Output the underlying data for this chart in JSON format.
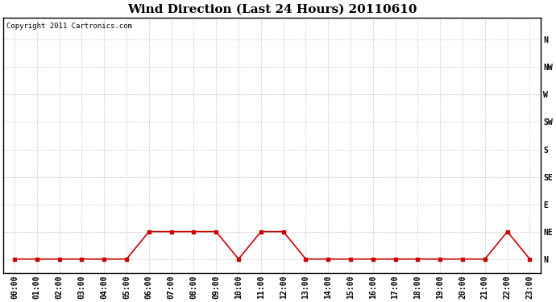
{
  "title": "Wind Direction (Last 24 Hours) 20110610",
  "copyright_text": "Copyright 2011 Cartronics.com",
  "line_color": "#cc0000",
  "marker_color": "#cc0000",
  "background_color": "#ffffff",
  "grid_color": "#c8c8c8",
  "hours": [
    0,
    1,
    2,
    3,
    4,
    5,
    6,
    7,
    8,
    9,
    10,
    11,
    12,
    13,
    14,
    15,
    16,
    17,
    18,
    19,
    20,
    21,
    22,
    23
  ],
  "x_labels": [
    "00:00",
    "01:00",
    "02:00",
    "03:00",
    "04:00",
    "05:00",
    "06:00",
    "07:00",
    "08:00",
    "09:00",
    "10:00",
    "11:00",
    "12:00",
    "13:00",
    "14:00",
    "15:00",
    "16:00",
    "17:00",
    "18:00",
    "19:00",
    "20:00",
    "21:00",
    "22:00",
    "23:00"
  ],
  "wind_values": [
    0,
    0,
    0,
    0,
    0,
    0,
    1,
    1,
    1,
    1,
    0,
    1,
    1,
    0,
    0,
    0,
    0,
    0,
    0,
    0,
    0,
    0,
    1,
    0
  ],
  "y_ticks": [
    0,
    1,
    2,
    3,
    4,
    5,
    6,
    7,
    8
  ],
  "y_labels": [
    "N",
    "NE",
    "E",
    "SE",
    "S",
    "SW",
    "W",
    "NW",
    "N"
  ],
  "ylim": [
    -0.5,
    8.8
  ],
  "xlim": [
    -0.5,
    23.5
  ],
  "title_fontsize": 11,
  "label_fontsize": 7,
  "copyright_fontsize": 6.5
}
